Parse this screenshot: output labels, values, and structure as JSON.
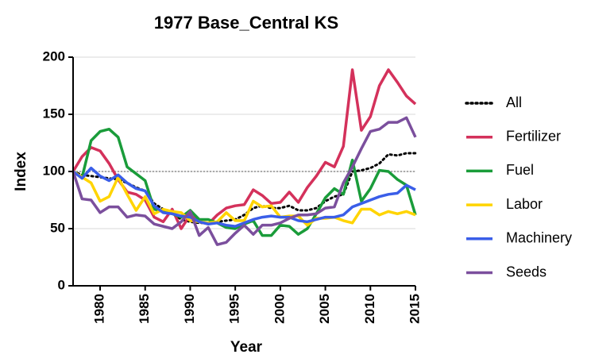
{
  "chart_data": {
    "type": "line",
    "title": "1977 Base_Central KS",
    "xlabel": "Year",
    "ylabel": "Index",
    "x": [
      1977,
      1978,
      1979,
      1980,
      1981,
      1982,
      1983,
      1984,
      1985,
      1986,
      1987,
      1988,
      1989,
      1990,
      1991,
      1992,
      1993,
      1994,
      1995,
      1996,
      1997,
      1998,
      1999,
      2000,
      2001,
      2002,
      2003,
      2004,
      2005,
      2006,
      2007,
      2008,
      2009,
      2010,
      2011,
      2012,
      2013,
      2014,
      2015
    ],
    "xlim": [
      1977,
      2015
    ],
    "xticks": [
      1980,
      1985,
      1990,
      1995,
      2000,
      2005,
      2010,
      2015
    ],
    "ylim": [
      0,
      200
    ],
    "yticks": [
      0,
      50,
      100,
      150,
      200
    ],
    "grid": true,
    "hline": 100,
    "series": [
      {
        "name": "All",
        "color": "#000000",
        "dashed": true,
        "values": [
          100,
          97,
          96,
          95,
          94,
          93,
          90,
          86,
          83,
          72,
          67,
          64,
          58,
          56,
          55,
          55,
          56,
          57,
          58,
          62,
          68,
          70,
          68,
          68,
          70,
          66,
          66,
          68,
          74,
          78,
          80,
          100,
          101,
          103,
          107,
          115,
          114,
          116,
          116
        ]
      },
      {
        "name": "Fertilizer",
        "color": "#d4315b",
        "values": [
          100,
          113,
          121,
          118,
          107,
          93,
          82,
          80,
          75,
          60,
          56,
          67,
          50,
          62,
          56,
          54,
          62,
          68,
          70,
          71,
          84,
          79,
          72,
          73,
          82,
          73,
          86,
          96,
          108,
          104,
          122,
          189,
          136,
          148,
          175,
          189,
          178,
          166,
          159
        ]
      },
      {
        "name": "Fuel",
        "color": "#1a9c3a",
        "values": [
          100,
          95,
          127,
          135,
          137,
          130,
          104,
          98,
          92,
          67,
          65,
          63,
          60,
          66,
          58,
          58,
          55,
          51,
          50,
          54,
          57,
          44,
          44,
          53,
          52,
          45,
          50,
          63,
          77,
          85,
          80,
          110,
          74,
          85,
          101,
          100,
          93,
          88,
          62
        ]
      },
      {
        "name": "Labor",
        "color": "#ffd400",
        "values": [
          100,
          95,
          90,
          74,
          78,
          95,
          80,
          66,
          78,
          63,
          67,
          65,
          64,
          57,
          56,
          55,
          56,
          64,
          57,
          57,
          74,
          69,
          70,
          60,
          61,
          61,
          53,
          59,
          59,
          60,
          57,
          55,
          67,
          67,
          62,
          65,
          63,
          65,
          62
        ]
      },
      {
        "name": "Machinery",
        "color": "#3a5ee8",
        "values": [
          100,
          94,
          103,
          96,
          92,
          97,
          90,
          85,
          83,
          70,
          64,
          63,
          61,
          60,
          56,
          54,
          55,
          53,
          52,
          55,
          58,
          60,
          61,
          60,
          60,
          57,
          56,
          58,
          60,
          60,
          62,
          69,
          72,
          75,
          78,
          80,
          81,
          88,
          84
        ]
      },
      {
        "name": "Seeds",
        "color": "#7b4f9d",
        "values": [
          100,
          76,
          75,
          64,
          69,
          69,
          60,
          62,
          61,
          54,
          52,
          50,
          56,
          65,
          44,
          51,
          36,
          38,
          46,
          53,
          45,
          53,
          53,
          55,
          59,
          62,
          62,
          63,
          68,
          69,
          90,
          104,
          120,
          135,
          137,
          143,
          143,
          147,
          130
        ]
      }
    ]
  }
}
